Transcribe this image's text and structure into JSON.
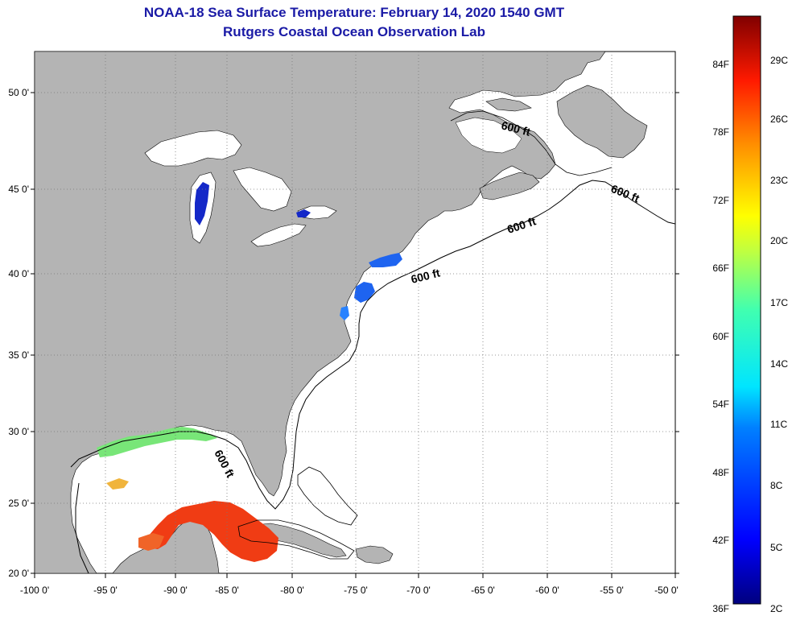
{
  "title_line1": "NOAA-18 Sea Surface Temperature:  February 14, 2020 1540 GMT",
  "title_line2": "Rutgers Coastal Ocean Observation Lab",
  "colors": {
    "land": "#b4b4b4",
    "ocean": "#ffffff",
    "title": "#1a1aa6"
  },
  "map": {
    "lat_labels": [
      "50 0'",
      "45 0'",
      "40 0'",
      "35 0'",
      "30 0'",
      "25 0'",
      "20 0'"
    ],
    "lon_labels": [
      "-100 0'",
      "-95 0'",
      "-90 0'",
      "-85 0'",
      "-80 0'",
      "-75 0'",
      "-70 0'",
      "-65 0'",
      "-60 0'",
      "-55 0'",
      "-50 0'"
    ],
    "contour_labels": [
      "600 ft",
      "600 ft",
      "600 ft",
      "600 ft",
      "600 ft"
    ]
  },
  "colorbar": {
    "fahrenheit_labels": [
      "84F",
      "78F",
      "72F",
      "66F",
      "60F",
      "54F",
      "48F",
      "42F",
      "36F"
    ],
    "celsius_labels": [
      "29C",
      "26C",
      "23C",
      "20C",
      "17C",
      "14C",
      "11C",
      "8C",
      "5C",
      "2C"
    ]
  }
}
